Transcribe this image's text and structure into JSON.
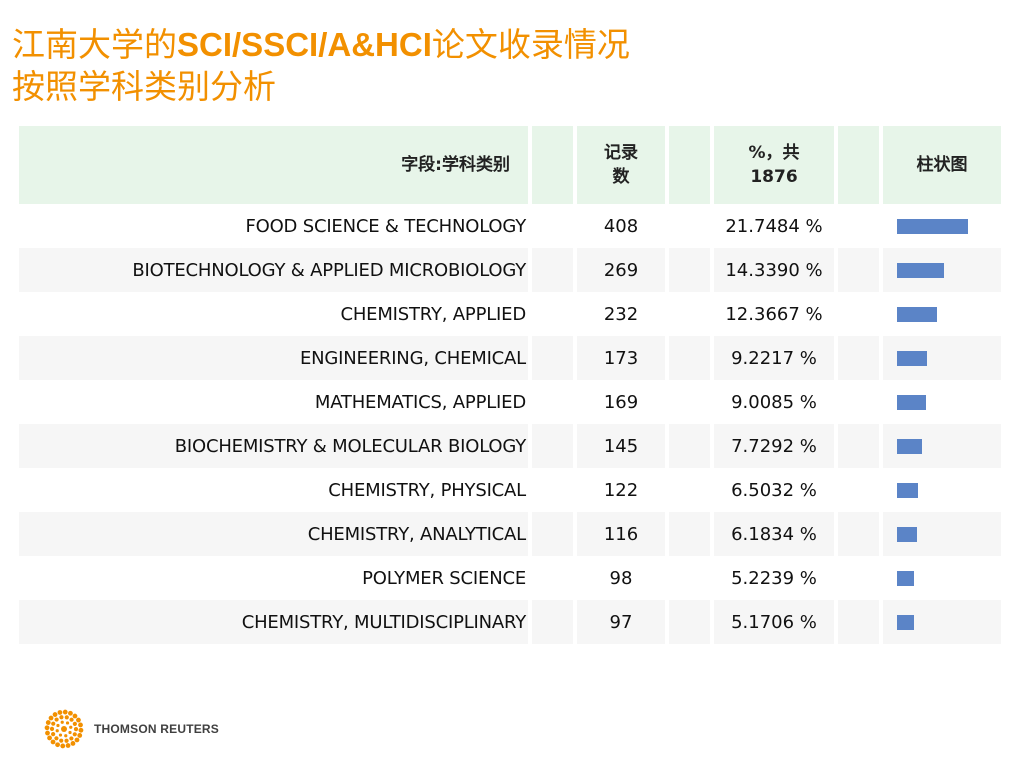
{
  "title": {
    "line1_prefix": "江南大学的",
    "line1_bold": "SCI/SSCI/A&HCI",
    "line1_suffix": "论文收录情况",
    "line2": "按照学科类别分析"
  },
  "colors": {
    "title": "#f29000",
    "header_bg": "#e7f5e9",
    "bar": "#5b84c7"
  },
  "table": {
    "headers": {
      "category": "字段:学科类别",
      "count_line1": "记录",
      "count_line2": "数",
      "pct_line1": "%，共",
      "pct_line2": "1876",
      "bar": "柱状图"
    },
    "rows": [
      {
        "category": "FOOD SCIENCE & TECHNOLOGY",
        "count": "408",
        "pct": "21.7484 %",
        "value": 21.7484
      },
      {
        "category": "BIOTECHNOLOGY & APPLIED MICROBIOLOGY",
        "count": "269",
        "pct": "14.3390 %",
        "value": 14.339
      },
      {
        "category": "CHEMISTRY, APPLIED",
        "count": "232",
        "pct": "12.3667 %",
        "value": 12.3667
      },
      {
        "category": "ENGINEERING, CHEMICAL",
        "count": "173",
        "pct": "9.2217 %",
        "value": 9.2217
      },
      {
        "category": "MATHEMATICS, APPLIED",
        "count": "169",
        "pct": "9.0085 %",
        "value": 9.0085
      },
      {
        "category": "BIOCHEMISTRY & MOLECULAR BIOLOGY",
        "count": "145",
        "pct": "7.7292 %",
        "value": 7.7292
      },
      {
        "category": "CHEMISTRY, PHYSICAL",
        "count": "122",
        "pct": "6.5032 %",
        "value": 6.5032
      },
      {
        "category": "CHEMISTRY, ANALYTICAL",
        "count": "116",
        "pct": "6.1834 %",
        "value": 6.1834
      },
      {
        "category": "POLYMER SCIENCE",
        "count": "98",
        "pct": "5.2239 %",
        "value": 5.2239
      },
      {
        "category": "CHEMISTRY, MULTIDISCIPLINARY",
        "count": "97",
        "pct": "5.1706 %",
        "value": 5.1706
      }
    ]
  },
  "footer": {
    "logo_text": "THOMSON REUTERS",
    "logo_icon": "thomson-reuters-globe-icon"
  }
}
